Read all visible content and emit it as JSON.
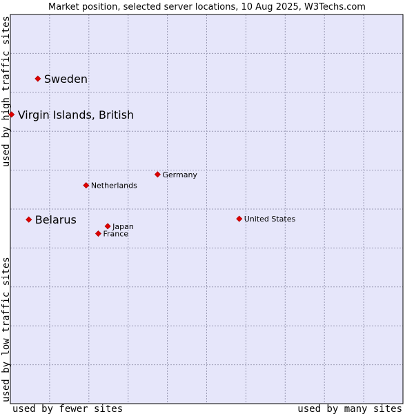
{
  "chart_data": {
    "type": "scatter",
    "title": "Market position, selected server locations, 10 Aug 2025, W3Techs.com",
    "xlabel_left": "used by fewer sites",
    "xlabel_right": "used by many sites",
    "ylabel_bottom": "used by low traffic sites",
    "ylabel_top": "used by high traffic sites",
    "xlim": [
      0,
      100
    ],
    "ylim": [
      0,
      100
    ],
    "grid": true,
    "legend": "none",
    "colors": {
      "plot_background": "#e6e6fa",
      "grid": "#9a9ab4",
      "border": "#000000",
      "marker": "#e00000",
      "marker_stroke": "#b00000"
    },
    "points": [
      {
        "label": "Sweden",
        "x": 7.0,
        "y": 83.5,
        "size": "large"
      },
      {
        "label": "Virgin Islands, British",
        "x": 0.3,
        "y": 74.3,
        "size": "large"
      },
      {
        "label": "Germany",
        "x": 37.5,
        "y": 58.9,
        "size": "small"
      },
      {
        "label": "Netherlands",
        "x": 19.3,
        "y": 56.1,
        "size": "small"
      },
      {
        "label": "Belarus",
        "x": 4.7,
        "y": 47.3,
        "size": "large"
      },
      {
        "label": "United States",
        "x": 58.3,
        "y": 47.5,
        "size": "small"
      },
      {
        "label": "Japan",
        "x": 24.8,
        "y": 45.6,
        "size": "small"
      },
      {
        "label": "France",
        "x": 22.4,
        "y": 43.7,
        "size": "small"
      }
    ]
  }
}
